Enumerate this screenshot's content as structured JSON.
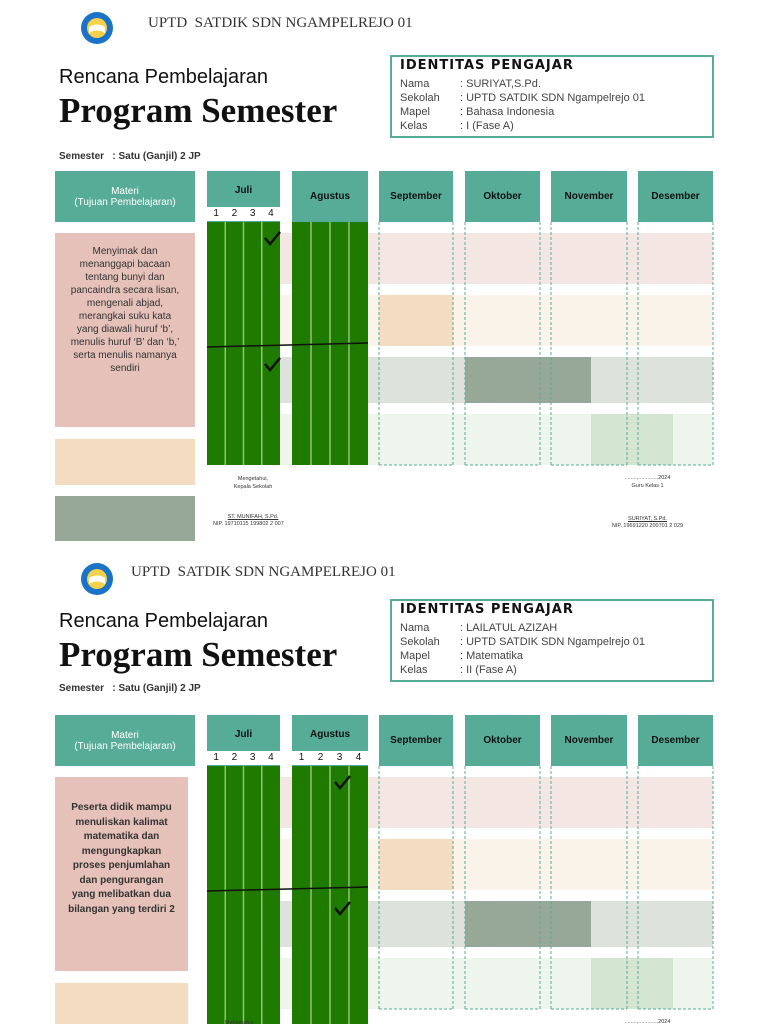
{
  "sections": [
    {
      "org": "UPTD  SATDIK SDN NGAMPELREJO 01",
      "subtitle": "Rencana Pembelajaran",
      "title": "Program Semester",
      "identity": {
        "heading": "IDENTITAS PENGAJAR",
        "rows": [
          [
            "Nama",
            ": SURIYAT,S.Pd."
          ],
          [
            "Sekolah",
            ": UPTD SATDIK SDN Ngampelrejo 01"
          ],
          [
            "Mapel",
            ": Bahasa Indonesia"
          ],
          [
            "Kelas",
            ": I (Fase A)"
          ]
        ]
      },
      "semester": "Semester   : Satu (Ganjil) 2 JP",
      "materi_header": "Materi\n(Tujuan Pembelajaran)",
      "months": [
        "Juli",
        "Agustus",
        "September",
        "Oktober",
        "November",
        "Desember"
      ],
      "weeks": [
        [
          1,
          2,
          3,
          4
        ]
      ],
      "materi": "Menyimak dan menanggapi bacaan tentang bunyi dan pancaindra secara lisan, mengenali abjad, merangkai suku kata yang diawali huruf ‘b’, menulis huruf ‘B’ dan ‘b,’ serta menulis namanya sendiri",
      "signature_left": [
        "Mengetahui,",
        "Kepala Sekolah",
        "ST. MUNIFAH, S.Pd.",
        "NIP. 19710115 199802 2 007"
      ],
      "signature_right": [
        "........,.............2024",
        "Guru Kelas 1",
        "SURIYAT, S.Pd.",
        "NIP. 19691220 200701 2 029"
      ]
    },
    {
      "org": "UPTD  SATDIK SDN NGAMPELREJO 01",
      "subtitle": "Rencana Pembelajaran",
      "title": "Program Semester",
      "identity": {
        "heading": "IDENTITAS PENGAJAR",
        "rows": [
          [
            "Nama",
            ": LAILATUL AZIZAH"
          ],
          [
            "Sekolah",
            ": UPTD SATDIK SDN Ngampelrejo 01"
          ],
          [
            "Mapel",
            ": Matematika"
          ],
          [
            "Kelas",
            ": II (Fase A)"
          ]
        ]
      },
      "semester": "Semester   : Satu (Ganjil) 2 JP",
      "materi_header": "Materi\n(Tujuan Pembelajaran)",
      "months": [
        "Juli",
        "Agustus",
        "September",
        "Oktober",
        "November",
        "Desember"
      ],
      "weeks": [
        [
          1,
          2,
          3,
          4
        ],
        [
          1,
          2,
          3,
          4
        ]
      ],
      "materi": "Peserta didik mampu menuliskan kalimat matematika dan mengungkapkan proses penjumlahan dan pengurangan yang melibatkan dua bilangan yang terdiri 2",
      "signature_left": [
        "Mengetahui,"
      ],
      "signature_right": [
        "........,.............2024"
      ]
    }
  ]
}
